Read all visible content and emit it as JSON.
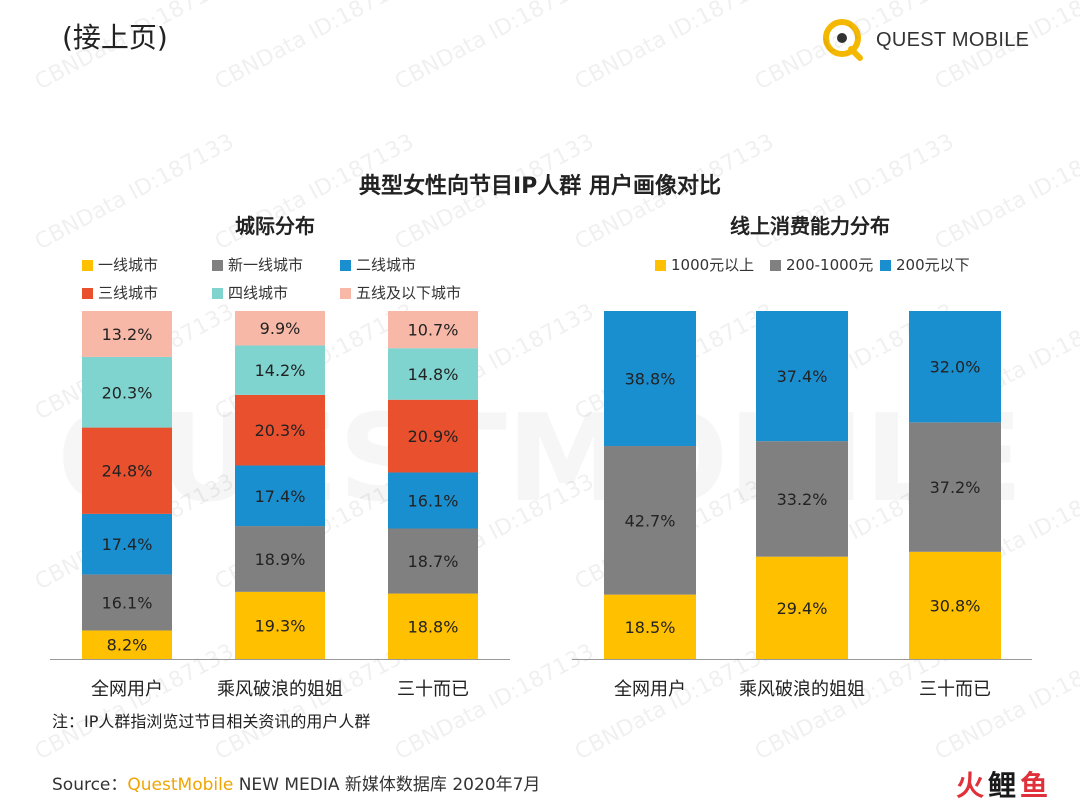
{
  "page": {
    "heading": "(接上页)",
    "brand": "QUEST MOBILE",
    "main_title": "典型女性向节目IP人群 用户画像对比",
    "note": "注：IP人群指浏览过节目相关资讯的用户人群",
    "source_prefix": "Source：",
    "source_brand": "QuestMobile",
    "source_rest": " NEW MEDIA 新媒体数据库 2020年7月",
    "footer_logo": [
      "火",
      "鲤",
      "鱼"
    ],
    "watermark": "CBNData ID:187133",
    "bg_watermark": "QUESTMOBILE"
  },
  "chart_data": [
    {
      "type": "bar",
      "stacked": true,
      "title": "城际分布",
      "categories": [
        "全网用户",
        "乘风破浪的姐姐",
        "三十而已"
      ],
      "series": [
        {
          "name": "一线城市",
          "color": "#ffc000",
          "values": [
            8.2,
            19.3,
            18.8
          ]
        },
        {
          "name": "新一线城市",
          "color": "#808080",
          "values": [
            16.1,
            18.9,
            18.7
          ]
        },
        {
          "name": "二线城市",
          "color": "#1a8fd0",
          "values": [
            17.4,
            17.4,
            16.1
          ]
        },
        {
          "name": "三线城市",
          "color": "#e8502e",
          "values": [
            24.8,
            20.3,
            20.9
          ]
        },
        {
          "name": "四线城市",
          "color": "#7fd4d0",
          "values": [
            20.3,
            14.2,
            14.8
          ]
        },
        {
          "name": "五线及以下城市",
          "color": "#f8b8a8",
          "values": [
            13.2,
            9.9,
            10.7
          ]
        }
      ],
      "data_labels": [
        [
          "8.2%",
          "19.3%",
          "18.8%"
        ],
        [
          "16.1%",
          "18.9%",
          "18.7%"
        ],
        [
          "17.4%",
          "17.4%",
          "16.1%"
        ],
        [
          "24.8%",
          "20.3%",
          "20.9%"
        ],
        [
          "20.3%",
          "14.2%",
          "14.8%"
        ],
        [
          "13.2%",
          "9.9%",
          "10.7%"
        ]
      ],
      "ylim": [
        0,
        100
      ],
      "legend_placement": "top"
    },
    {
      "type": "bar",
      "stacked": true,
      "title": "线上消费能力分布",
      "categories": [
        "全网用户",
        "乘风破浪的姐姐",
        "三十而已"
      ],
      "series": [
        {
          "name": "1000元以上",
          "color": "#ffc000",
          "values": [
            18.5,
            29.4,
            30.8
          ]
        },
        {
          "name": "200-1000元",
          "color": "#808080",
          "values": [
            42.7,
            33.2,
            37.2
          ]
        },
        {
          "name": "200元以下",
          "color": "#1a8fd0",
          "values": [
            38.8,
            37.4,
            32.0
          ]
        }
      ],
      "data_labels": [
        [
          "18.5%",
          "29.4%",
          "30.8%"
        ],
        [
          "42.7%",
          "33.2%",
          "37.2%"
        ],
        [
          "38.8%",
          "37.4%",
          "32.0%"
        ]
      ],
      "ylim": [
        0,
        100
      ],
      "legend_placement": "top"
    }
  ]
}
